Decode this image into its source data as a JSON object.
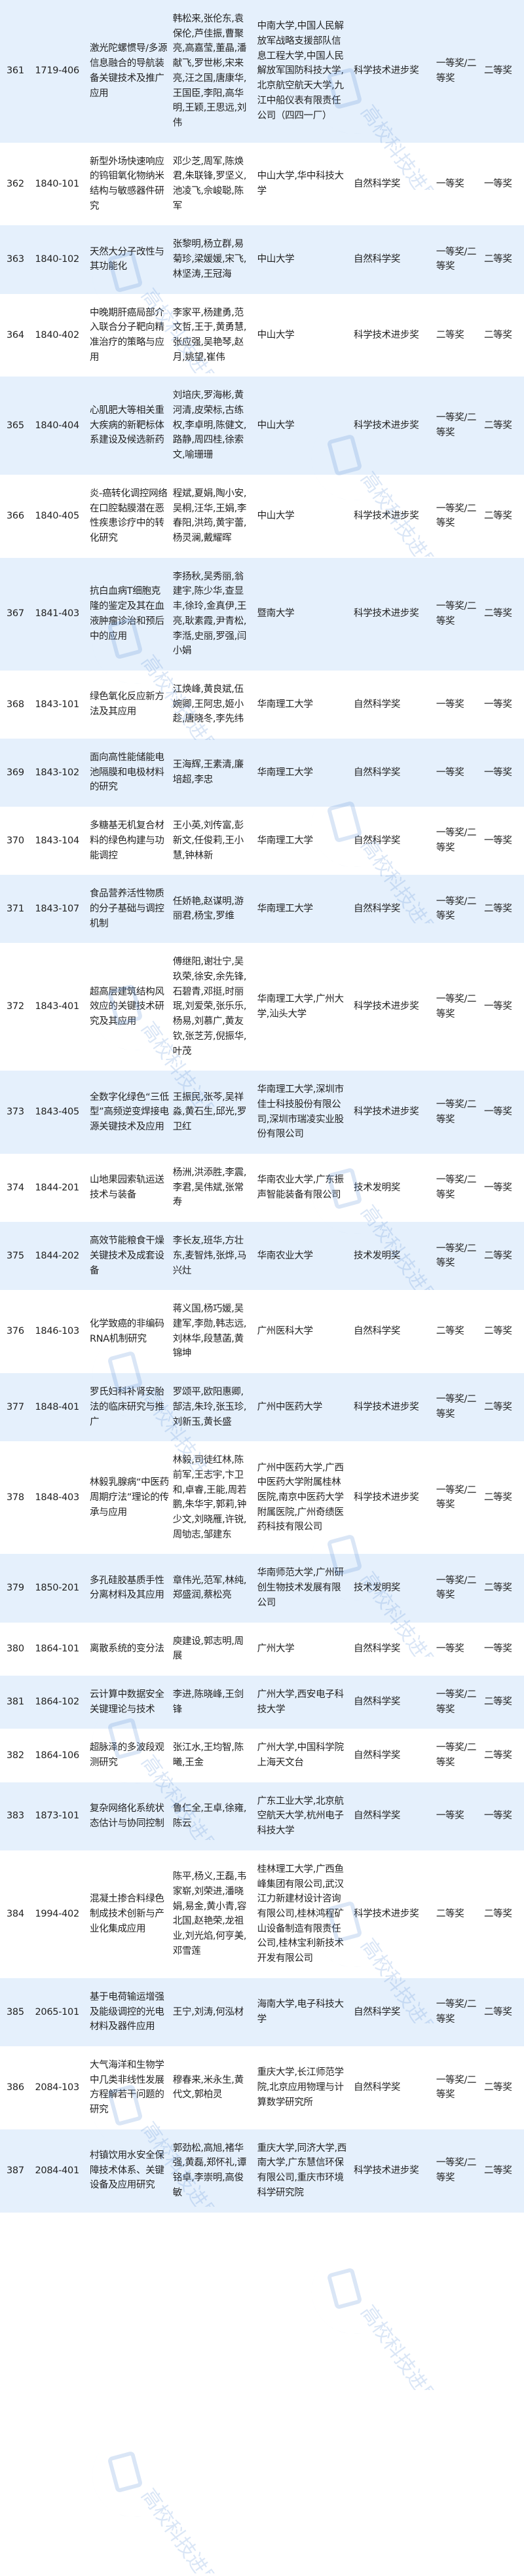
{
  "watermark": {
    "text": "高校科技进展",
    "color": "#5b8fd8"
  },
  "colors": {
    "row_alt": "#e5f0fc",
    "row": "#ffffff",
    "text": "#222222"
  },
  "rows": [
    {
      "no": "361",
      "code": "1719-406",
      "title": "激光陀螺惯导/多源信息融合的导航装备关键技术及推广应用",
      "authors": "韩松来,张伦东,袁保伦,芦佳振,曹聚亮,高嘉莹,董晶,潘献飞,罗世彬,宋来亮,汪之国,唐康华,王国臣,李阳,高华明,王颖,王思远,刘伟",
      "units": "中南大学,中国人民解放军战略支援部队信息工程大学,中国人民解放军国防科技大学,北京航空航天大学,九江中船仪表有限责任公司（四四一厂）",
      "category": "科学技术进步奖",
      "level": "一等奖/二等奖",
      "final": "二等奖"
    },
    {
      "no": "362",
      "code": "1840-101",
      "title": "新型外场快速响应的钨钼氧化物纳米结构与敏感器件研究",
      "authors": "邓少芝,周军,陈焕君,朱联锋,罗坚义,池凌飞,佘峻聪,陈军",
      "units": "中山大学,华中科技大学",
      "category": "自然科学奖",
      "level": "一等奖",
      "final": "一等奖"
    },
    {
      "no": "363",
      "code": "1840-102",
      "title": "天然大分子改性与其功能化",
      "authors": "张黎明,杨立群,易菊珍,梁媛媛,宋飞,林坚涛,王冠海",
      "units": "中山大学",
      "category": "自然科学奖",
      "level": "一等奖/二等奖",
      "final": "二等奖"
    },
    {
      "no": "364",
      "code": "1840-402",
      "title": "中晚期肝癌局部介入联合分子靶向精准治疗的策略与应用",
      "authors": "李家平,杨建勇,范文哲,王于,黄勇慧,张应强,吴艳琴,赵月,姚望,崔伟",
      "units": "中山大学",
      "category": "科学技术进步奖",
      "level": "二等奖",
      "final": "二等奖"
    },
    {
      "no": "365",
      "code": "1840-404",
      "title": "心肌肥大等相关重大疾病的新靶标体系建设及候选新药",
      "authors": "刘培庆,罗海彬,黄河清,皮荣标,古练权,李卓明,陈健文,路静,周四桂,徐索文,喻珊珊",
      "units": "中山大学",
      "category": "科学技术进步奖",
      "level": "一等奖/二等奖",
      "final": "二等奖"
    },
    {
      "no": "366",
      "code": "1840-405",
      "title": "炎-癌转化调控网络在口腔黏膜潜在恶性疾患诊疗中的转化研究",
      "authors": "程斌,夏娟,陶小安,吴桐,汪华,王娟,李春阳,洪筠,黄宇蕾,杨灵澜,戴耀晖",
      "units": "中山大学",
      "category": "科学技术进步奖",
      "level": "一等奖/二等奖",
      "final": "二等奖"
    },
    {
      "no": "367",
      "code": "1841-403",
      "title": "抗白血病T细胞克隆的鉴定及其在血液肿瘤诊治和预后中的应用",
      "authors": "李扬秋,吴秀丽,翁建宇,陈少华,查显丰,徐玲,金真伊,王亮,耿素霞,尹青松,李湉,史丽,罗强,闫小娟",
      "units": "暨南大学",
      "category": "科学技术进步奖",
      "level": "一等奖/二等奖",
      "final": "二等奖"
    },
    {
      "no": "368",
      "code": "1843-101",
      "title": "绿色氧化反应新方法及其应用",
      "authors": "江焕峰,黄良斌,伍婉卿,王阿忠,姬小趁,唐晓冬,李先纬",
      "units": "华南理工大学",
      "category": "自然科学奖",
      "level": "一等奖",
      "final": "一等奖"
    },
    {
      "no": "369",
      "code": "1843-102",
      "title": "面向高性能储能电池隔膜和电极材料的研究",
      "authors": "王海辉,王素清,廉培超,李忠",
      "units": "华南理工大学",
      "category": "自然科学奖",
      "level": "一等奖",
      "final": "一等奖"
    },
    {
      "no": "370",
      "code": "1843-104",
      "title": "多糖基无机复合材料的绿色构建与功能调控",
      "authors": "王小英,刘传富,彭新文,任俊莉,王小慧,钟林新",
      "units": "华南理工大学",
      "category": "自然科学奖",
      "level": "一等奖/二等奖",
      "final": "一等奖"
    },
    {
      "no": "371",
      "code": "1843-107",
      "title": "食品营养活性物质的分子基础与调控机制",
      "authors": "任娇艳,赵谋明,游丽君,杨宝,罗维",
      "units": "华南理工大学",
      "category": "自然科学奖",
      "level": "一等奖/二等奖",
      "final": "二等奖"
    },
    {
      "no": "372",
      "code": "1843-401",
      "title": "超高层建筑结构风效应的关键技术研究及其应用",
      "authors": "傅继阳,谢壮宁,吴玖荣,徐安,余先锋,石碧青,邓挺,时丽珉,刘爱荣,张乐乐,杨易,刘慕广,黄友钦,张芝芳,倪振华,叶茂",
      "units": "华南理工大学,广州大学,汕头大学",
      "category": "科学技术进步奖",
      "level": "一等奖/二等奖",
      "final": "一等奖"
    },
    {
      "no": "373",
      "code": "1843-405",
      "title": "全数字化绿色“三低型”高频逆变焊接电源关键技术及应用",
      "authors": "王振民,张芩,吴祥淼,黄石生,邱光,罗卫红",
      "units": "华南理工大学,深圳市佳士科技股份有限公司,深圳市瑞凌实业股份有限公司",
      "category": "科学技术进步奖",
      "level": "一等奖/二等奖",
      "final": "一等奖"
    },
    {
      "no": "374",
      "code": "1844-201",
      "title": "山地果园索轨运送技术与装备",
      "authors": "杨洲,洪添胜,李震,李君,吴伟斌,张常寿",
      "units": "华南农业大学,广东振声智能装备有限公司",
      "category": "技术发明奖",
      "level": "一等奖/二等奖",
      "final": "一等奖"
    },
    {
      "no": "375",
      "code": "1844-202",
      "title": "高效节能粮食干燥关键技术及成套设备",
      "authors": "李长友,班华,方壮东,麦智炜,张烨,马兴灶",
      "units": "华南农业大学",
      "category": "技术发明奖",
      "level": "一等奖/二等奖",
      "final": "二等奖"
    },
    {
      "no": "376",
      "code": "1846-103",
      "title": "化学致癌的非编码RNA机制研究",
      "authors": "蒋义国,杨巧媛,吴建军,李勋,韩志远,刘林华,段慧菡,黄锦坤",
      "units": "广州医科大学",
      "category": "自然科学奖",
      "level": "二等奖",
      "final": "二等奖"
    },
    {
      "no": "377",
      "code": "1848-401",
      "title": "罗氏妇科补肾安胎法的临床研究与推广",
      "authors": "罗颂平,欧阳惠卿,郜洁,朱玲,张玉珍,刘新玉,黄长盛",
      "units": "广州中医药大学",
      "category": "科学技术进步奖",
      "level": "一等奖/二等奖",
      "final": "二等奖"
    },
    {
      "no": "378",
      "code": "1848-403",
      "title": "林毅乳腺病“中医药周期疗法”理论的传承与应用",
      "authors": "林毅,司徒红林,陈前军,王志宇,卞卫和,卓睿,王能,周若鹏,朱华宇,郭莉,钟少文,刘晓雁,许锐,周劬志,邹建东",
      "units": "广州中医药大学,广西中医药大学附属桂林医院,南京中医药大学附属医院,广州奇绩医药科技有限公司",
      "category": "科学技术进步奖",
      "level": "一等奖/二等奖",
      "final": "二等奖"
    },
    {
      "no": "379",
      "code": "1850-201",
      "title": "多孔硅胶基质手性分离材料及其应用",
      "authors": "章伟光,范军,林纯,郑盛润,蔡松亮",
      "units": "华南师范大学,广州研创生物技术发展有限公司",
      "category": "技术发明奖",
      "level": "一等奖/二等奖",
      "final": "二等奖"
    },
    {
      "no": "380",
      "code": "1864-101",
      "title": "离散系统的变分法",
      "authors": "庾建设,郭志明,周展",
      "units": "广州大学",
      "category": "自然科学奖",
      "level": "一等奖",
      "final": "一等奖"
    },
    {
      "no": "381",
      "code": "1864-102",
      "title": "云计算中数据安全关键理论与技术",
      "authors": "李进,陈晓峰,王剑锋",
      "units": "广州大学,西安电子科技大学",
      "category": "自然科学奖",
      "level": "一等奖/二等奖",
      "final": "二等奖"
    },
    {
      "no": "382",
      "code": "1864-106",
      "title": "超脉泽的多波段观测研究",
      "authors": "张江水,王均智,陈曦,王金",
      "units": "广州大学,中国科学院上海天文台",
      "category": "自然科学奖",
      "level": "一等奖/二等奖",
      "final": "二等奖"
    },
    {
      "no": "383",
      "code": "1873-101",
      "title": "复杂网络化系统状态估计与协同控制",
      "authors": "鲁仁全,王卓,徐雍,陈云",
      "units": "广东工业大学,北京航空航天大学,杭州电子科技大学",
      "category": "自然科学奖",
      "level": "一等奖",
      "final": "一等奖"
    },
    {
      "no": "384",
      "code": "1994-402",
      "title": "混凝土掺合料绿色制成技术创新与产业化集成应用",
      "authors": "陈平,杨义,王磊,韦家崭,刘荣进,潘晓娟,易金,黄小青,容北国,赵艳荣,龙祖业,刘光焰,何亨美,邓雪莲",
      "units": "桂林理工大学,广西鱼峰集团有限公司,武汉江力新建材设计咨询有限公司,桂林鸿程矿山设备制造有限责任公司,桂林宝利新技术开发有限公司",
      "category": "科学技术进步奖",
      "level": "二等奖",
      "final": "二等奖"
    },
    {
      "no": "385",
      "code": "2065-101",
      "title": "基于电荷输运增强及能级调控的光电材料及器件应用",
      "authors": "王宁,刘涛,何泓材",
      "units": "海南大学,电子科技大学",
      "category": "自然科学奖",
      "level": "一等奖/二等奖",
      "final": "二等奖"
    },
    {
      "no": "386",
      "code": "2084-103",
      "title": "大气海洋和生物学中几类非线性发展方程解若干问题的研究",
      "authors": "穆春来,米永生,黄代文,郭柏灵",
      "units": "重庆大学,长江师范学院,北京应用物理与计算数学研究所",
      "category": "自然科学奖",
      "level": "一等奖/二等奖",
      "final": "二等奖"
    },
    {
      "no": "387",
      "code": "2084-401",
      "title": "村镇饮用水安全保障技术体系、关键设备及应用研究",
      "authors": "郭劲松,高旭,褚华强,黄磊,郑怀礼,谭铭卓,李崇明,高俊敏",
      "units": "重庆大学,同济大学,西南大学,广东慧信环保有限公司,重庆市环境科学研究院",
      "category": "科学技术进步奖",
      "level": "一等奖/二等奖",
      "final": "二等奖"
    }
  ]
}
